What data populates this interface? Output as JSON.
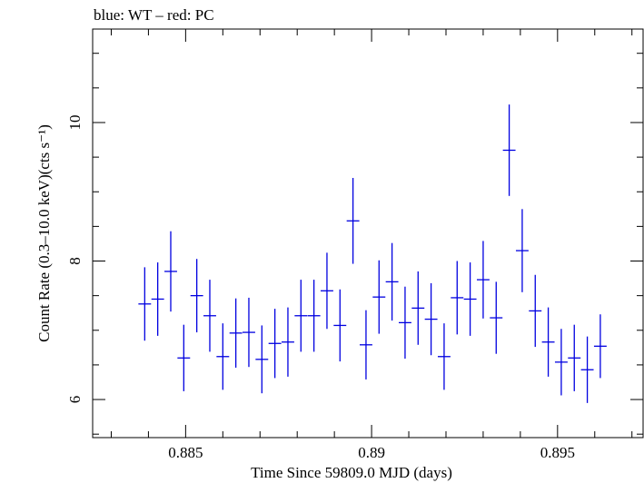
{
  "chart_data": {
    "type": "scatter",
    "title": "blue: WT – red: PC",
    "xlabel": "Time Since 59809.0 MJD (days)",
    "ylabel": "Count Rate (0.3–10.0 keV)(cts s⁻¹)",
    "xlim": [
      0.8825,
      0.8973
    ],
    "ylim": [
      5.45,
      11.35
    ],
    "grid": false,
    "x_ticks": [
      0.885,
      0.89,
      0.895
    ],
    "x_tick_labels": [
      "0.885",
      "0.89",
      "0.895"
    ],
    "y_ticks": [
      6,
      8,
      10
    ],
    "y_tick_labels": [
      "6",
      "8",
      "10"
    ],
    "series": [
      {
        "color": "#0000e0",
        "x_halfwidth": 0.00017,
        "points": [
          {
            "x": 0.8839,
            "y": 7.38,
            "err": 0.53
          },
          {
            "x": 0.88425,
            "y": 7.45,
            "err": 0.53
          },
          {
            "x": 0.8846,
            "y": 7.85,
            "err": 0.58
          },
          {
            "x": 0.88495,
            "y": 6.6,
            "err": 0.48
          },
          {
            "x": 0.8853,
            "y": 7.5,
            "err": 0.53
          },
          {
            "x": 0.88565,
            "y": 7.21,
            "err": 0.52
          },
          {
            "x": 0.886,
            "y": 6.62,
            "err": 0.48
          },
          {
            "x": 0.88635,
            "y": 6.96,
            "err": 0.5
          },
          {
            "x": 0.8867,
            "y": 6.97,
            "err": 0.5
          },
          {
            "x": 0.88705,
            "y": 6.58,
            "err": 0.49
          },
          {
            "x": 0.8874,
            "y": 6.81,
            "err": 0.5
          },
          {
            "x": 0.88775,
            "y": 6.83,
            "err": 0.5
          },
          {
            "x": 0.8881,
            "y": 7.21,
            "err": 0.52
          },
          {
            "x": 0.88845,
            "y": 7.21,
            "err": 0.52
          },
          {
            "x": 0.8888,
            "y": 7.57,
            "err": 0.55
          },
          {
            "x": 0.88915,
            "y": 7.07,
            "err": 0.52
          },
          {
            "x": 0.8895,
            "y": 8.58,
            "err": 0.62
          },
          {
            "x": 0.88985,
            "y": 6.79,
            "err": 0.5
          },
          {
            "x": 0.8902,
            "y": 7.48,
            "err": 0.53
          },
          {
            "x": 0.89055,
            "y": 7.7,
            "err": 0.56
          },
          {
            "x": 0.8909,
            "y": 7.11,
            "err": 0.52
          },
          {
            "x": 0.89125,
            "y": 7.32,
            "err": 0.53
          },
          {
            "x": 0.8916,
            "y": 7.16,
            "err": 0.52
          },
          {
            "x": 0.89195,
            "y": 6.62,
            "err": 0.48
          },
          {
            "x": 0.8923,
            "y": 7.47,
            "err": 0.53
          },
          {
            "x": 0.89265,
            "y": 7.45,
            "err": 0.53
          },
          {
            "x": 0.893,
            "y": 7.73,
            "err": 0.56
          },
          {
            "x": 0.89335,
            "y": 7.18,
            "err": 0.52
          },
          {
            "x": 0.8937,
            "y": 9.6,
            "err": 0.66
          },
          {
            "x": 0.89405,
            "y": 8.15,
            "err": 0.6
          },
          {
            "x": 0.8944,
            "y": 7.28,
            "err": 0.52
          },
          {
            "x": 0.89475,
            "y": 6.83,
            "err": 0.5
          },
          {
            "x": 0.8951,
            "y": 6.54,
            "err": 0.48
          },
          {
            "x": 0.89545,
            "y": 6.6,
            "err": 0.48
          },
          {
            "x": 0.8958,
            "y": 6.43,
            "err": 0.48
          },
          {
            "x": 0.89615,
            "y": 6.77,
            "err": 0.46
          }
        ]
      }
    ]
  }
}
